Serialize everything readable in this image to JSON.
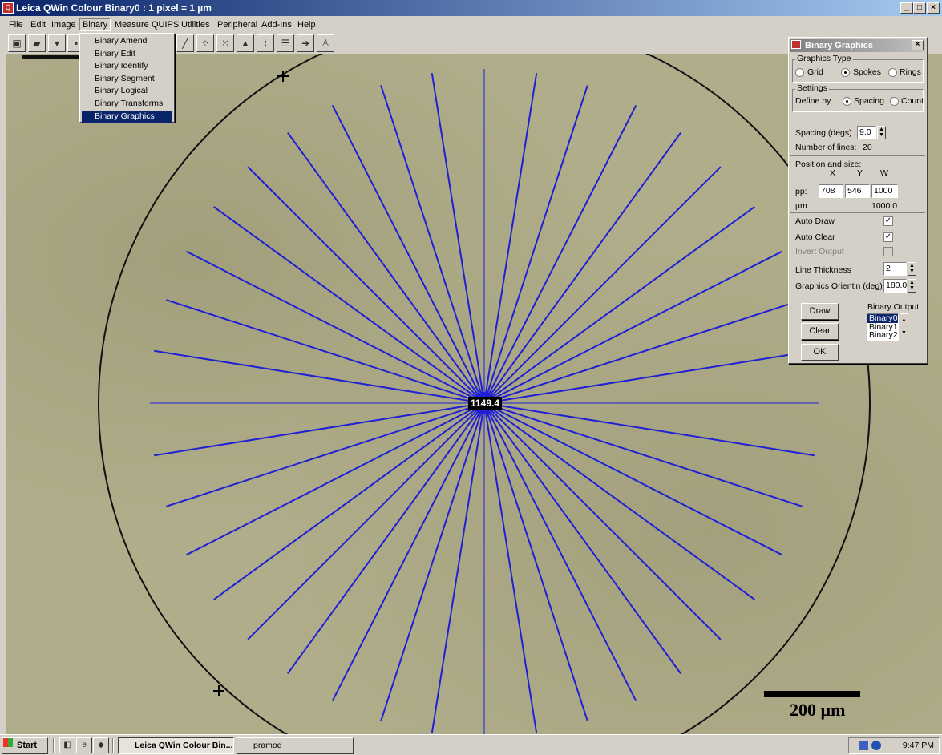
{
  "window": {
    "title": "Leica QWin Colour  Binary0 : 1 pixel = 1 µm",
    "controls": [
      "_",
      "□",
      "×"
    ]
  },
  "menu": [
    "File",
    "Edit",
    "Image",
    "Binary",
    "Measure",
    "QUIPS",
    "Utilities",
    "Peripheral",
    "Add-Ins",
    "Help"
  ],
  "binary_menu": {
    "items": [
      "Binary Amend",
      "Binary Edit",
      "Binary Identify",
      "Binary Segment",
      "Binary Logical",
      "Binary Transforms",
      "Binary Graphics"
    ],
    "selected": "Binary Graphics"
  },
  "image": {
    "center_value": "1149.4",
    "scale_label": "200 µm",
    "spoke_color": "#1f1fd6",
    "circle_color": "#111111"
  },
  "dialog": {
    "title": "Binary Graphics",
    "graphics_type": {
      "label": "Graphics Type",
      "options": [
        "Grid",
        "Spokes",
        "Rings"
      ],
      "selected": "Spokes"
    },
    "settings": {
      "label": "Settings",
      "define_by_label": "Define by",
      "options": [
        "Spacing",
        "Count"
      ],
      "selected": "Spacing"
    },
    "spacing_label": "Spacing (degs)",
    "spacing_value": "9.0",
    "num_lines_label": "Number of lines:",
    "num_lines_value": "20",
    "position": {
      "label": "Position and size:",
      "headers": [
        "X",
        "Y",
        "W"
      ],
      "pp_label": "pp:",
      "x": "708",
      "y": "546",
      "w": "1000",
      "um_label": "µm",
      "um_value": "1000.0"
    },
    "auto_draw_label": "Auto Draw",
    "auto_draw": true,
    "auto_clear_label": "Auto Clear",
    "auto_clear": true,
    "invert_output_label": "Invert Output",
    "invert_output": false,
    "line_thickness_label": "Line Thickness",
    "line_thickness": "2",
    "orient_label": "Graphics Orient'n (deg):",
    "orient_value": "180.0",
    "buttons": {
      "draw": "Draw",
      "clear": "Clear",
      "ok": "OK"
    },
    "binary_output_label": "Binary Output",
    "binary_outputs": [
      "Binary0",
      "Binary1",
      "Binary2"
    ],
    "binary_output_selected": "Binary0"
  },
  "taskbar": {
    "start": "Start",
    "tasks": [
      "Leica QWin Colour  Bin...",
      "pramod"
    ],
    "clock": "9:47 PM"
  }
}
